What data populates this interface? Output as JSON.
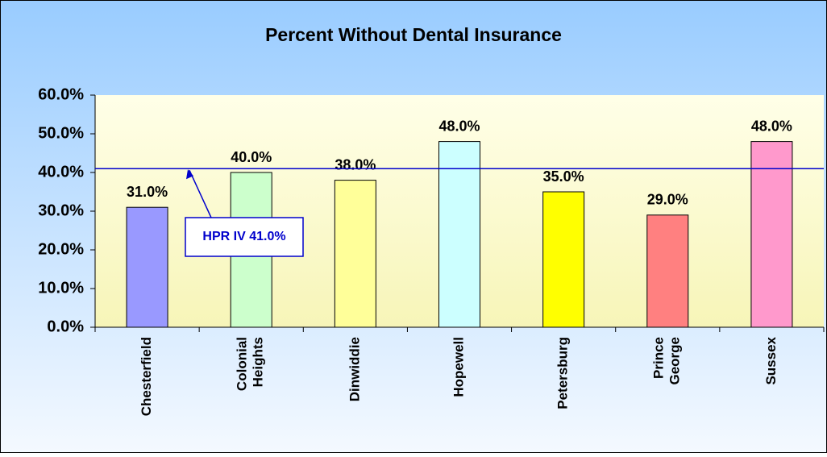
{
  "chart_data": {
    "type": "bar",
    "title": "Percent Without Dental Insurance",
    "categories": [
      "Chesterfield",
      "Colonial Heights",
      "Dinwiddie",
      "Hopewell",
      "Petersburg",
      "Prince George",
      "Sussex"
    ],
    "values": [
      31,
      40,
      38,
      48,
      35,
      29,
      48
    ],
    "value_labels": [
      "31.0%",
      "40.0%",
      "38.0%",
      "48.0%",
      "35.0%",
      "29.0%",
      "48.0%"
    ],
    "colors": [
      "#9999ff",
      "#ccffcc",
      "#ffff99",
      "#ccffff",
      "#ffff00",
      "#ff8080",
      "#ff99cc"
    ],
    "ylim": [
      0,
      60
    ],
    "yticks": [
      {
        "value": 0,
        "label": "0.0%"
      },
      {
        "value": 10,
        "label": "10.0%"
      },
      {
        "value": 20,
        "label": "20.0%"
      },
      {
        "value": 30,
        "label": "30.0%"
      },
      {
        "value": 40,
        "label": "40.0%"
      },
      {
        "value": 50,
        "label": "50.0%"
      },
      {
        "value": 60,
        "label": "60.0%"
      }
    ],
    "reference_line": {
      "value": 41,
      "label": "HPR IV 41.0%",
      "color": "#0000cc"
    }
  }
}
